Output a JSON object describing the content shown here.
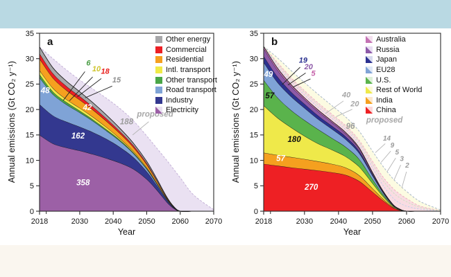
{
  "page": {
    "top_band_color": "#b9d9e3",
    "bottom_band_color": "#faf6ef",
    "background": "#ffffff"
  },
  "axes": {
    "xlabel": "Year",
    "ylabel": "Annual emissions (Gt CO₂ y⁻¹)",
    "xrange": [
      2018,
      2070
    ],
    "yrange": [
      0,
      35
    ],
    "xticks": [
      2018,
      2030,
      2040,
      2050,
      2060,
      2070
    ],
    "xminor": [
      2020
    ],
    "yticks": [
      0,
      5,
      10,
      15,
      20,
      25,
      30,
      35
    ],
    "axis_color": "#2b2b2b",
    "grid": false
  },
  "chart_data": [
    {
      "id": "a",
      "type": "area",
      "panel_label": "a",
      "values_are": "cumulative_tops_Gt_per_year",
      "years": [
        2018,
        2022,
        2026,
        2030,
        2034,
        2038,
        2042,
        2046,
        2050,
        2053,
        2056,
        2058,
        2060,
        2064,
        2070
      ],
      "series": [
        {
          "name": "Electricity",
          "color": "#9c60a6",
          "tops": [
            15.0,
            13.3,
            12.5,
            11.9,
            11.2,
            10.4,
            9.5,
            8.3,
            6.3,
            4.2,
            1.8,
            0.6,
            0,
            0,
            0
          ]
        },
        {
          "name": "Industry",
          "color": "#33388f",
          "tops": [
            21.0,
            18.8,
            17.6,
            16.6,
            15.5,
            14.2,
            12.6,
            10.6,
            7.8,
            5.1,
            2.2,
            0.75,
            0,
            0,
            0
          ]
        },
        {
          "name": "Road transport",
          "color": "#7fa3d6",
          "tops": [
            26.3,
            23.0,
            21.0,
            19.4,
            17.7,
            15.8,
            13.8,
            11.4,
            8.3,
            5.4,
            2.35,
            0.8,
            0,
            0,
            0
          ]
        },
        {
          "name": "Other transport",
          "color": "#4aa647",
          "tops": [
            26.9,
            23.5,
            21.45,
            19.75,
            18.0,
            16.05,
            14.0,
            11.55,
            8.42,
            5.47,
            2.4,
            0.82,
            0,
            0,
            0
          ]
        },
        {
          "name": "Intl. transport",
          "color": "#f0ea47",
          "tops": [
            27.7,
            24.2,
            22.0,
            20.3,
            18.5,
            16.5,
            14.3,
            11.8,
            8.6,
            5.6,
            2.45,
            0.84,
            0,
            0,
            0
          ]
        },
        {
          "name": "Residential",
          "color": "#f5a01f",
          "tops": [
            30.0,
            26.2,
            23.8,
            21.9,
            19.9,
            17.7,
            15.3,
            12.6,
            9.2,
            6.0,
            2.6,
            0.9,
            0,
            0,
            0
          ]
        },
        {
          "name": "Commercial",
          "color": "#ec1f24",
          "tops": [
            31.0,
            27.1,
            24.6,
            22.6,
            20.5,
            18.2,
            15.7,
            12.95,
            9.45,
            6.15,
            2.7,
            0.93,
            0,
            0,
            0
          ]
        },
        {
          "name": "Other energy",
          "color": "#a7a7a9",
          "tops": [
            32.3,
            28.2,
            25.6,
            23.5,
            21.3,
            18.9,
            16.3,
            13.4,
            9.8,
            6.4,
            2.8,
            0.97,
            0,
            0,
            0
          ]
        }
      ],
      "envelopes": [
        {
          "name": "proposed",
          "fill": "#eae1f2",
          "stroke": "#c5b2d8",
          "tops": [
            32.3,
            30.0,
            27.8,
            25.8,
            24.0,
            22.2,
            20.2,
            17.8,
            14.8,
            12.4,
            10.0,
            8.3,
            6.6,
            3.2,
            0.3
          ]
        }
      ],
      "inner_dashed": [],
      "legend": [
        {
          "label": "Other energy",
          "color": "#a7a7a9",
          "marker": "square"
        },
        {
          "label": "Commercial",
          "color": "#ec1f24",
          "marker": "square"
        },
        {
          "label": "Residential",
          "color": "#f5a01f",
          "marker": "square"
        },
        {
          "label": "Intl. transport",
          "color": "#f0ea47",
          "marker": "square"
        },
        {
          "label": "Other transport",
          "color": "#4aa647",
          "marker": "square"
        },
        {
          "label": "Road transport",
          "color": "#7fa3d6",
          "marker": "square"
        },
        {
          "label": "Industry",
          "color": "#33388f",
          "marker": "square"
        },
        {
          "label": "Electricity",
          "color": "#9c60a6",
          "marker": "triangle",
          "tint": "#e9e0f1"
        }
      ],
      "annotations": [
        {
          "text": "48",
          "x": 2019.7,
          "y": 23.2,
          "color": "#ffffff",
          "size": 11.5
        },
        {
          "text": "42",
          "x": 2032.3,
          "y": 19.9,
          "color": "#ffffff",
          "size": 11.5
        },
        {
          "text": "162",
          "x": 2029.5,
          "y": 14.3,
          "color": "#ffffff",
          "size": 11.5
        },
        {
          "text": "358",
          "x": 2031.0,
          "y": 5.1,
          "color": "#ffffff",
          "size": 11.5
        },
        {
          "text": "188",
          "x": 2044.0,
          "y": 17.1,
          "color": "#9c9c9c",
          "size": 11.5
        },
        {
          "text": "proposed",
          "x": 2052.5,
          "y": 18.6,
          "color": "#a8a8a8",
          "size": 11.5
        }
      ],
      "callouts": [
        {
          "text": "6",
          "color": "#4a9d45",
          "lx": 2032.6,
          "ly": 28.7,
          "tx": 2025.1,
          "ty": 21.8,
          "size": 11
        },
        {
          "text": "10",
          "color": "#cfc52e",
          "lx": 2035.0,
          "ly": 27.5,
          "tx": 2026.9,
          "ty": 21.7,
          "size": 11
        },
        {
          "text": "18",
          "color": "#e8201e",
          "lx": 2037.6,
          "ly": 27.0,
          "tx": 2029.3,
          "ty": 22.5,
          "size": 11
        },
        {
          "text": "15",
          "color": "#8f8f8f",
          "lx": 2041.0,
          "ly": 25.3,
          "tx": 2031.6,
          "ty": 22.3,
          "size": 11
        }
      ],
      "lines": [
        {
          "x1": 2050.6,
          "y1": 17.6,
          "x2": 2045.8,
          "y2": 15.0,
          "color": "#b5b5b5",
          "w": 0.9
        }
      ]
    },
    {
      "id": "b",
      "type": "area",
      "panel_label": "b",
      "values_are": "cumulative_tops_Gt_per_year",
      "years": [
        2018,
        2022,
        2026,
        2030,
        2034,
        2038,
        2042,
        2046,
        2050,
        2053,
        2056,
        2058,
        2060,
        2064,
        2070
      ],
      "series": [
        {
          "name": "China",
          "color": "#ee2024",
          "tops": [
            9.3,
            8.95,
            8.6,
            8.3,
            8.0,
            7.65,
            7.15,
            5.95,
            3.8,
            2.15,
            0.7,
            0.2,
            0,
            0,
            0
          ]
        },
        {
          "name": "India",
          "color": "#f5a01f",
          "tops": [
            11.5,
            11.05,
            10.65,
            10.25,
            9.8,
            9.3,
            8.6,
            7.1,
            4.5,
            2.5,
            0.82,
            0.24,
            0,
            0,
            0
          ]
        },
        {
          "name": "Rest of World",
          "color": "#efe94a",
          "tops": [
            20.8,
            18.4,
            16.5,
            14.8,
            13.3,
            12.1,
            10.8,
            8.8,
            5.5,
            3.0,
            0.98,
            0.29,
            0,
            0,
            0
          ]
        },
        {
          "name": "U.S.",
          "color": "#5ab34c",
          "tops": [
            25.8,
            22.4,
            19.9,
            17.9,
            16.1,
            14.4,
            12.7,
            10.3,
            6.3,
            3.4,
            1.1,
            0.33,
            0,
            0,
            0
          ]
        },
        {
          "name": "EU28",
          "color": "#7fa3d6",
          "tops": [
            29.3,
            25.4,
            22.6,
            20.3,
            18.1,
            16.2,
            14.2,
            11.5,
            7.0,
            3.75,
            1.2,
            0.36,
            0,
            0,
            0
          ]
        },
        {
          "name": "Japan",
          "color": "#2b3190",
          "tops": [
            30.5,
            26.5,
            23.5,
            21.1,
            18.8,
            16.8,
            14.75,
            11.9,
            7.25,
            3.88,
            1.25,
            0.38,
            0,
            0,
            0
          ]
        },
        {
          "name": "Russia",
          "color": "#8d5aa8",
          "tops": [
            32.0,
            27.8,
            24.6,
            22.0,
            19.6,
            17.5,
            15.3,
            12.35,
            7.5,
            4.0,
            1.3,
            0.4,
            0,
            0,
            0
          ]
        },
        {
          "name": "Australia",
          "color": "#c473b4",
          "tops": [
            32.4,
            28.2,
            24.95,
            22.3,
            19.9,
            17.75,
            15.55,
            12.55,
            7.62,
            4.07,
            1.33,
            0.41,
            0,
            0,
            0
          ]
        }
      ],
      "envelopes": [
        {
          "name": "proposed-outer",
          "fill": "#fcfbe2",
          "stroke": "#a9b8c8",
          "tops": [
            32.4,
            30.2,
            27.7,
            25.3,
            23.0,
            20.8,
            18.6,
            15.8,
            11.8,
            8.9,
            6.4,
            5.1,
            3.9,
            1.9,
            0.25
          ]
        },
        {
          "name": "proposed-inner",
          "fill": "#f9dce2",
          "stroke": "#eeb3c0",
          "tops": [
            32.4,
            29.3,
            26.3,
            23.7,
            21.3,
            19.1,
            16.9,
            14.0,
            9.8,
            6.8,
            4.5,
            3.4,
            2.5,
            1.0,
            0.12
          ]
        }
      ],
      "inner_dashed": [
        {
          "f": 0.4,
          "color": "#bccfe8"
        },
        {
          "f": 0.75,
          "color": "#c8e2bd"
        }
      ],
      "legend": [
        {
          "label": "Australia",
          "color": "#c473b4",
          "marker": "triangle",
          "tint": "#f3dfee"
        },
        {
          "label": "Russia",
          "color": "#8d5aa8",
          "marker": "triangle",
          "tint": "#e8ddf2"
        },
        {
          "label": "Japan",
          "color": "#2b3190",
          "marker": "triangle",
          "tint": "#d7daee"
        },
        {
          "label": "EU28",
          "color": "#7fa3d6",
          "marker": "triangle",
          "tint": "#dfe8f6"
        },
        {
          "label": "U.S.",
          "color": "#5ab34c",
          "marker": "triangle",
          "tint": "#def0d9"
        },
        {
          "label": "Rest of World",
          "color": "#efe94a",
          "marker": "triangle",
          "tint": "#fbf9d8"
        },
        {
          "label": "India",
          "color": "#f5a01f",
          "marker": "triangle",
          "tint": "#fce8cc"
        },
        {
          "label": "China",
          "color": "#ee2024",
          "marker": "triangle",
          "tint": "#fbd8d9"
        }
      ],
      "annotations": [
        {
          "text": "49",
          "x": 2019.4,
          "y": 26.4,
          "color": "#ffffff",
          "size": 11.5
        },
        {
          "text": "57",
          "x": 2019.8,
          "y": 22.2,
          "color": "#111111",
          "size": 11.5
        },
        {
          "text": "180",
          "x": 2027.0,
          "y": 13.6,
          "color": "#111111",
          "size": 11.5
        },
        {
          "text": "57",
          "x": 2023.0,
          "y": 9.9,
          "color": "#ffffff",
          "size": 11.5
        },
        {
          "text": "270",
          "x": 2032.0,
          "y": 4.2,
          "color": "#ffffff",
          "size": 11.5
        },
        {
          "text": "96",
          "x": 2043.5,
          "y": 16.2,
          "color": "#9c9c9c",
          "size": 11.5
        },
        {
          "text": "proposed",
          "x": 2053.5,
          "y": 17.4,
          "color": "#a8a8a8",
          "size": 11.5
        }
      ],
      "callouts": [
        {
          "text": "19",
          "color": "#2b3190",
          "lx": 2029.6,
          "ly": 29.2,
          "tx": 2023.4,
          "ty": 24.9,
          "size": 11
        },
        {
          "text": "20",
          "color": "#8d5aa8",
          "lx": 2031.2,
          "ly": 27.9,
          "tx": 2025.1,
          "ty": 24.8,
          "size": 11
        },
        {
          "text": "5",
          "color": "#c45fa8",
          "lx": 2032.6,
          "ly": 26.6,
          "tx": 2026.6,
          "ty": 24.4,
          "size": 11
        },
        {
          "text": "40",
          "color": "#a6a6a6",
          "lineColor": "#b5b5b5",
          "lx": 2042.3,
          "ly": 22.4,
          "tx": 2036.2,
          "ty": 19.2,
          "size": 11
        },
        {
          "text": "20",
          "color": "#a6a6a6",
          "lineColor": "#b5b5b5",
          "lx": 2044.8,
          "ly": 20.6,
          "tx": 2039.3,
          "ty": 18.6,
          "size": 11
        },
        {
          "text": "14",
          "color": "#9b9b9b",
          "lineColor": "#b5b5b5",
          "lx": 2054.2,
          "ly": 13.9,
          "tx": 2050.8,
          "ty": 11.5,
          "size": 10
        },
        {
          "text": "9",
          "color": "#9b9b9b",
          "lineColor": "#b5b5b5",
          "lx": 2055.8,
          "ly": 12.5,
          "tx": 2052.5,
          "ty": 9.6,
          "size": 10
        },
        {
          "text": "5",
          "color": "#9b9b9b",
          "lineColor": "#b5b5b5",
          "lx": 2057.2,
          "ly": 11.2,
          "tx": 2054.3,
          "ty": 7.8,
          "size": 10
        },
        {
          "text": "3",
          "color": "#9b9b9b",
          "lineColor": "#b5b5b5",
          "lx": 2058.6,
          "ly": 9.9,
          "tx": 2056.3,
          "ty": 6.1,
          "size": 10
        },
        {
          "text": "2",
          "color": "#9b9b9b",
          "lineColor": "#b5b5b5",
          "lx": 2060.2,
          "ly": 8.6,
          "tx": 2058.6,
          "ty": 4.6,
          "size": 10
        }
      ],
      "lines": []
    }
  ]
}
